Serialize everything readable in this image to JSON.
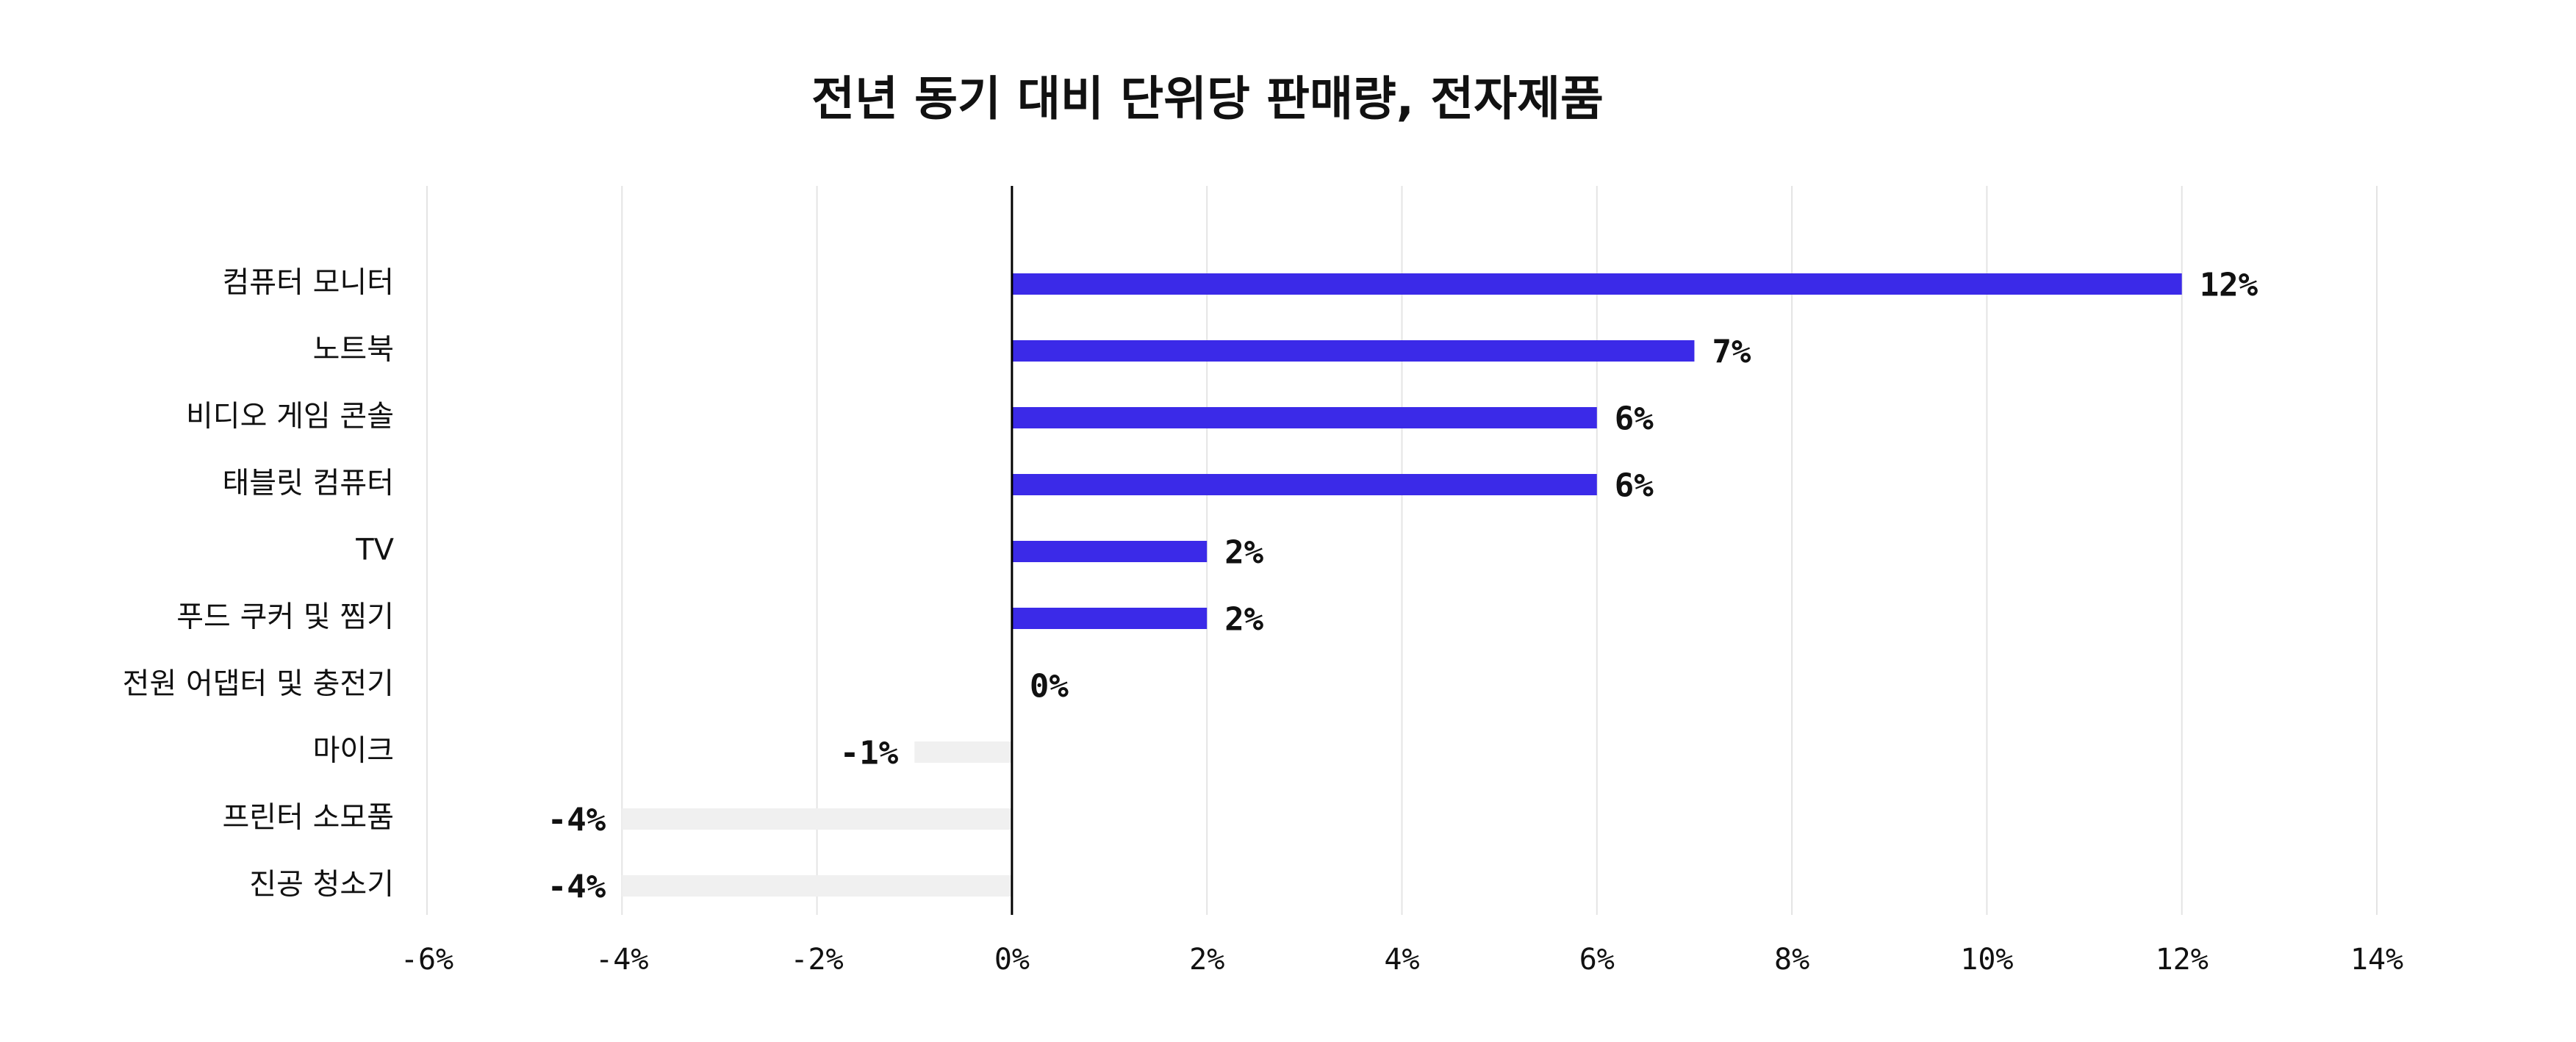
{
  "chart_data": {
    "type": "hbar",
    "title": "전년 동기 대비 단위당 판매량, 전자제품",
    "categories": [
      "컴퓨터 모니터",
      "노트북",
      "비디오 게임 콘솔",
      "태블릿 컴퓨터",
      "TV",
      "푸드 쿠커 및 찜기",
      "전원 어댑터 및 충전기",
      "마이크",
      "프린터 소모품",
      "진공 청소기"
    ],
    "values": [
      12,
      7,
      6,
      6,
      2,
      2,
      0,
      -1,
      -4,
      -4
    ],
    "value_labels": [
      "12%",
      "7%",
      "6%",
      "6%",
      "2%",
      "2%",
      "0%",
      "-1%",
      "-4%",
      "-4%"
    ],
    "colors": [
      "#3b2ae8",
      "#3b2ae8",
      "#3b2ae8",
      "#3b2ae8",
      "#3b2ae8",
      "#3b2ae8",
      "#3b2ae8",
      "#f0f0f0",
      "#f0f0f0",
      "#f0f0f0"
    ],
    "xlim": [
      -6,
      14
    ],
    "xticks": [
      {
        "value": -6,
        "label": "-6%"
      },
      {
        "value": -4,
        "label": "-4%"
      },
      {
        "value": -2,
        "label": "-2%"
      },
      {
        "value": 0,
        "label": "0%"
      },
      {
        "value": 2,
        "label": "2%"
      },
      {
        "value": 4,
        "label": "4%"
      },
      {
        "value": 6,
        "label": "6%"
      },
      {
        "value": 8,
        "label": "8%"
      },
      {
        "value": 10,
        "label": "10%"
      },
      {
        "value": 12,
        "label": "12%"
      },
      {
        "value": 14,
        "label": "14%"
      }
    ],
    "grid": true
  }
}
